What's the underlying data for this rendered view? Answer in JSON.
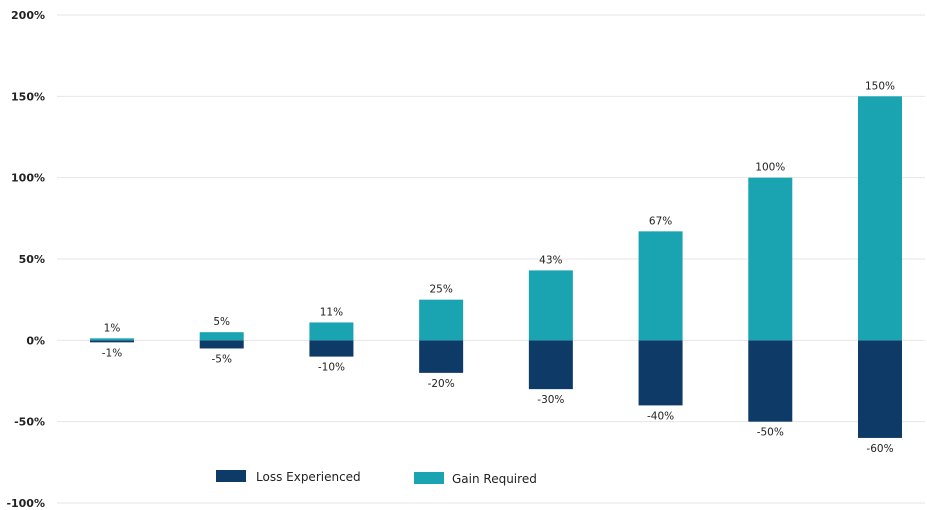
{
  "chart_data": {
    "type": "bar",
    "title": "",
    "xlabel": "",
    "ylabel": "",
    "ylim": [
      -100,
      200
    ],
    "yticks": [
      -100,
      -50,
      0,
      50,
      100,
      150,
      200
    ],
    "ytick_labels": [
      "-100%",
      "-50%",
      "0%",
      "50%",
      "100%",
      "150%",
      "200%"
    ],
    "grid": true,
    "legend_position": "bottom-center",
    "stacked": true,
    "series": [
      {
        "name": "Loss Experienced",
        "color": "#0d3a66",
        "values": [
          -1,
          -5,
          -10,
          -20,
          -30,
          -40,
          -50,
          -60
        ],
        "labels": [
          "-1%",
          "-5%",
          "-10%",
          "-20%",
          "-30%",
          "-40%",
          "-50%",
          "-60%"
        ]
      },
      {
        "name": "Gain Required",
        "color": "#1aa3b1",
        "values": [
          1,
          5,
          11,
          25,
          43,
          67,
          100,
          150
        ],
        "labels": [
          "1%",
          "5%",
          "11%",
          "25%",
          "43%",
          "67%",
          "100%",
          "150%"
        ]
      }
    ]
  }
}
